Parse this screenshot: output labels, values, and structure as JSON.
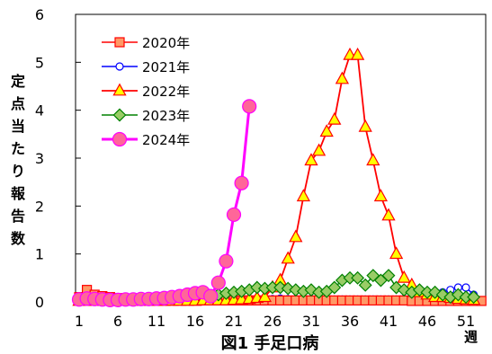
{
  "chart_data": {
    "type": "line",
    "title": "図1 手足口病",
    "ylabel": "定点当たり報告数",
    "xlabel": "週",
    "xlim": [
      1,
      53
    ],
    "ylim": [
      0,
      6
    ],
    "yticks": [
      0,
      1,
      2,
      3,
      4,
      5,
      6
    ],
    "xticks": [
      1,
      6,
      11,
      16,
      21,
      26,
      31,
      36,
      41,
      46,
      51
    ],
    "grid": false,
    "legend_position": "top-left",
    "series": [
      {
        "name": "2020年",
        "color": "#FF0000",
        "fill": "#FF9966",
        "marker": "square",
        "x": [
          1,
          2,
          3,
          4,
          5,
          6,
          7,
          8,
          9,
          10,
          11,
          12,
          13,
          14,
          15,
          16,
          17,
          18,
          19,
          20,
          21,
          22,
          23,
          24,
          25,
          26,
          27,
          28,
          29,
          30,
          31,
          32,
          33,
          34,
          35,
          36,
          37,
          38,
          39,
          40,
          41,
          42,
          43,
          44,
          45,
          46,
          47,
          48,
          49,
          50,
          51,
          52,
          53
        ],
        "values": [
          0.1,
          0.25,
          0.15,
          0.12,
          0.1,
          0.08,
          0.06,
          0.05,
          0.05,
          0.05,
          0.05,
          0.04,
          0.04,
          0.04,
          0.04,
          0.04,
          0.03,
          0.03,
          0.03,
          0.03,
          0.03,
          0.03,
          0.03,
          0.03,
          0.03,
          0.03,
          0.03,
          0.03,
          0.03,
          0.03,
          0.03,
          0.03,
          0.03,
          0.03,
          0.03,
          0.03,
          0.03,
          0.03,
          0.03,
          0.03,
          0.03,
          0.03,
          0.03,
          0.02,
          0.02,
          0.02,
          0.02,
          0.02,
          0.02,
          0.02,
          0.02,
          0.02,
          0.02
        ]
      },
      {
        "name": "2021年",
        "color": "#0000FF",
        "fill": "#FFFFFF",
        "marker": "circle",
        "x": [
          1,
          2,
          3,
          4,
          5,
          6,
          7,
          8,
          9,
          10,
          11,
          12,
          13,
          14,
          15,
          16,
          17,
          18,
          19,
          20,
          21,
          22,
          23,
          24,
          25,
          26,
          27,
          28,
          29,
          30,
          31,
          32,
          33,
          34,
          35,
          36,
          37,
          38,
          39,
          40,
          41,
          42,
          43,
          44,
          45,
          46,
          47,
          48,
          49,
          50,
          51,
          52
        ],
        "values": [
          0.02,
          0.02,
          0.02,
          0.02,
          0.02,
          0.02,
          0.02,
          0.02,
          0.02,
          0.02,
          0.02,
          0.02,
          0.02,
          0.02,
          0.02,
          0.02,
          0.03,
          0.03,
          0.03,
          0.04,
          0.05,
          0.05,
          0.06,
          0.06,
          0.06,
          0.06,
          0.07,
          0.06,
          0.06,
          0.06,
          0.06,
          0.06,
          0.06,
          0.05,
          0.05,
          0.05,
          0.05,
          0.05,
          0.05,
          0.05,
          0.05,
          0.05,
          0.06,
          0.08,
          0.12,
          0.15,
          0.18,
          0.2,
          0.25,
          0.3,
          0.3,
          0.15
        ]
      },
      {
        "name": "2022年",
        "color": "#FF0000",
        "fill": "#FFFF00",
        "marker": "triangle",
        "x": [
          1,
          2,
          3,
          4,
          5,
          6,
          7,
          8,
          9,
          10,
          11,
          12,
          13,
          14,
          15,
          16,
          17,
          18,
          19,
          20,
          21,
          22,
          23,
          24,
          25,
          26,
          27,
          28,
          29,
          30,
          31,
          32,
          33,
          34,
          35,
          36,
          37,
          38,
          39,
          40,
          41,
          42,
          43,
          44,
          45,
          46,
          47,
          48,
          49,
          50,
          51,
          52
        ],
        "values": [
          0.02,
          0.02,
          0.02,
          0.02,
          0.02,
          0.02,
          0.02,
          0.02,
          0.02,
          0.02,
          0.02,
          0.02,
          0.02,
          0.02,
          0.02,
          0.02,
          0.03,
          0.03,
          0.03,
          0.03,
          0.04,
          0.05,
          0.06,
          0.08,
          0.1,
          0.3,
          0.45,
          0.9,
          1.35,
          2.2,
          2.95,
          3.15,
          3.55,
          3.8,
          4.65,
          5.15,
          5.15,
          3.65,
          2.95,
          2.2,
          1.8,
          1.0,
          0.5,
          0.35,
          0.2,
          0.15,
          0.1,
          0.1,
          0.08,
          0.06,
          0.05,
          0.04
        ]
      },
      {
        "name": "2023年",
        "color": "#008000",
        "fill": "#99CC66",
        "marker": "diamond",
        "x": [
          19,
          20,
          21,
          22,
          23,
          24,
          25,
          26,
          27,
          28,
          29,
          30,
          31,
          32,
          33,
          34,
          35,
          36,
          37,
          38,
          39,
          40,
          41,
          42,
          43,
          44,
          45,
          46,
          47,
          48,
          49,
          50,
          51,
          52
        ],
        "values": [
          0.15,
          0.18,
          0.2,
          0.22,
          0.25,
          0.3,
          0.28,
          0.3,
          0.3,
          0.28,
          0.25,
          0.22,
          0.25,
          0.2,
          0.22,
          0.3,
          0.45,
          0.5,
          0.5,
          0.35,
          0.55,
          0.45,
          0.55,
          0.3,
          0.25,
          0.2,
          0.25,
          0.2,
          0.2,
          0.15,
          0.1,
          0.15,
          0.1,
          0.1
        ]
      },
      {
        "name": "2024年",
        "color": "#FF00FF",
        "fill": "#FF6699",
        "marker": "circle",
        "x": [
          1,
          2,
          3,
          4,
          5,
          6,
          7,
          8,
          9,
          10,
          11,
          12,
          13,
          14,
          15,
          16,
          17,
          18,
          19,
          20,
          21,
          22,
          23
        ],
        "values": [
          0.05,
          0.07,
          0.06,
          0.05,
          0.04,
          0.04,
          0.05,
          0.05,
          0.06,
          0.06,
          0.07,
          0.08,
          0.1,
          0.12,
          0.15,
          0.18,
          0.2,
          0.12,
          0.4,
          0.85,
          1.82,
          2.48,
          4.08
        ]
      }
    ]
  }
}
